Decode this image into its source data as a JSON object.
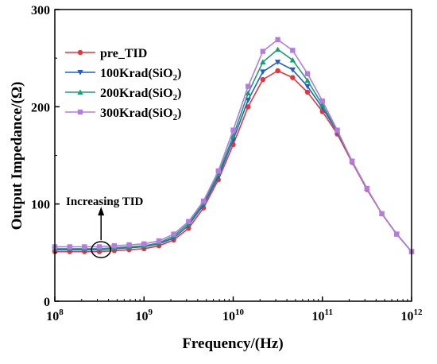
{
  "chart_data": {
    "type": "line",
    "title": "",
    "xlabel": "Frequency/(Hz)",
    "ylabel": "Output Impedance/(Ω)",
    "xscale": "log",
    "xlim": [
      100000000.0,
      1000000000000.0
    ],
    "ylim": [
      0,
      300
    ],
    "grid": false,
    "legend_position": "top-left",
    "x_ticks": [
      {
        "base": "10",
        "exp": "8"
      },
      {
        "base": "10",
        "exp": "9"
      },
      {
        "base": "10",
        "exp": "10"
      },
      {
        "base": "10",
        "exp": "11"
      },
      {
        "base": "10",
        "exp": "12"
      }
    ],
    "y_ticks": [
      "0",
      "100",
      "200",
      "300"
    ],
    "x": [
      100000000.0,
      147000000.0,
      215000000.0,
      316000000.0,
      464000000.0,
      681000000.0,
      1000000000.0,
      1470000000.0,
      2150000000.0,
      3160000000.0,
      4640000000.0,
      6810000000.0,
      10000000000.0,
      14700000000.0,
      21500000000.0,
      31600000000.0,
      46400000000.0,
      68100000000.0,
      100000000000.0,
      147000000000.0,
      215000000000.0,
      316000000000.0,
      464000000000.0,
      681000000000.0,
      1000000000000.0
    ],
    "series": [
      {
        "name": "pre_TID",
        "name_sub": "",
        "name_suffix": "",
        "color": "#e8343a",
        "marker": "circle",
        "values": [
          51,
          51,
          51,
          51,
          52,
          53,
          54,
          57,
          63,
          75,
          96,
          125,
          161,
          200,
          228,
          237,
          230,
          215,
          195,
          172,
          143,
          115,
          90,
          69,
          51
        ]
      },
      {
        "name": "100Krad(SiO",
        "name_sub": "2",
        "name_suffix": ")",
        "color": "#1f5fc8",
        "marker": "triangle-down",
        "values": [
          53,
          53,
          53,
          53,
          54,
          55,
          56,
          59,
          65,
          78,
          99,
          128,
          166,
          207,
          236,
          246,
          238,
          221,
          199,
          174,
          144,
          116,
          90,
          69,
          51
        ]
      },
      {
        "name": "200Krad(SiO",
        "name_sub": "2",
        "name_suffix": ")",
        "color": "#1aa06e",
        "marker": "triangle-up",
        "values": [
          54,
          54,
          54,
          54,
          55,
          56,
          57,
          60,
          67,
          80,
          101,
          131,
          170,
          214,
          246,
          259,
          248,
          227,
          202,
          175,
          144,
          116,
          90,
          69,
          51
        ]
      },
      {
        "name": "300Krad(SiO",
        "name_sub": "2",
        "name_suffix": ")",
        "color": "#b57be0",
        "marker": "square",
        "values": [
          56,
          56,
          56,
          56,
          57,
          58,
          59,
          62,
          69,
          82,
          103,
          134,
          176,
          221,
          257,
          269,
          258,
          234,
          206,
          176,
          144,
          116,
          90,
          69,
          51
        ]
      }
    ],
    "annotations": [
      {
        "text": "Increasing TID",
        "arrow": "up",
        "circle_at": {
          "x": 330000000.0,
          "y": 53
        }
      }
    ]
  }
}
